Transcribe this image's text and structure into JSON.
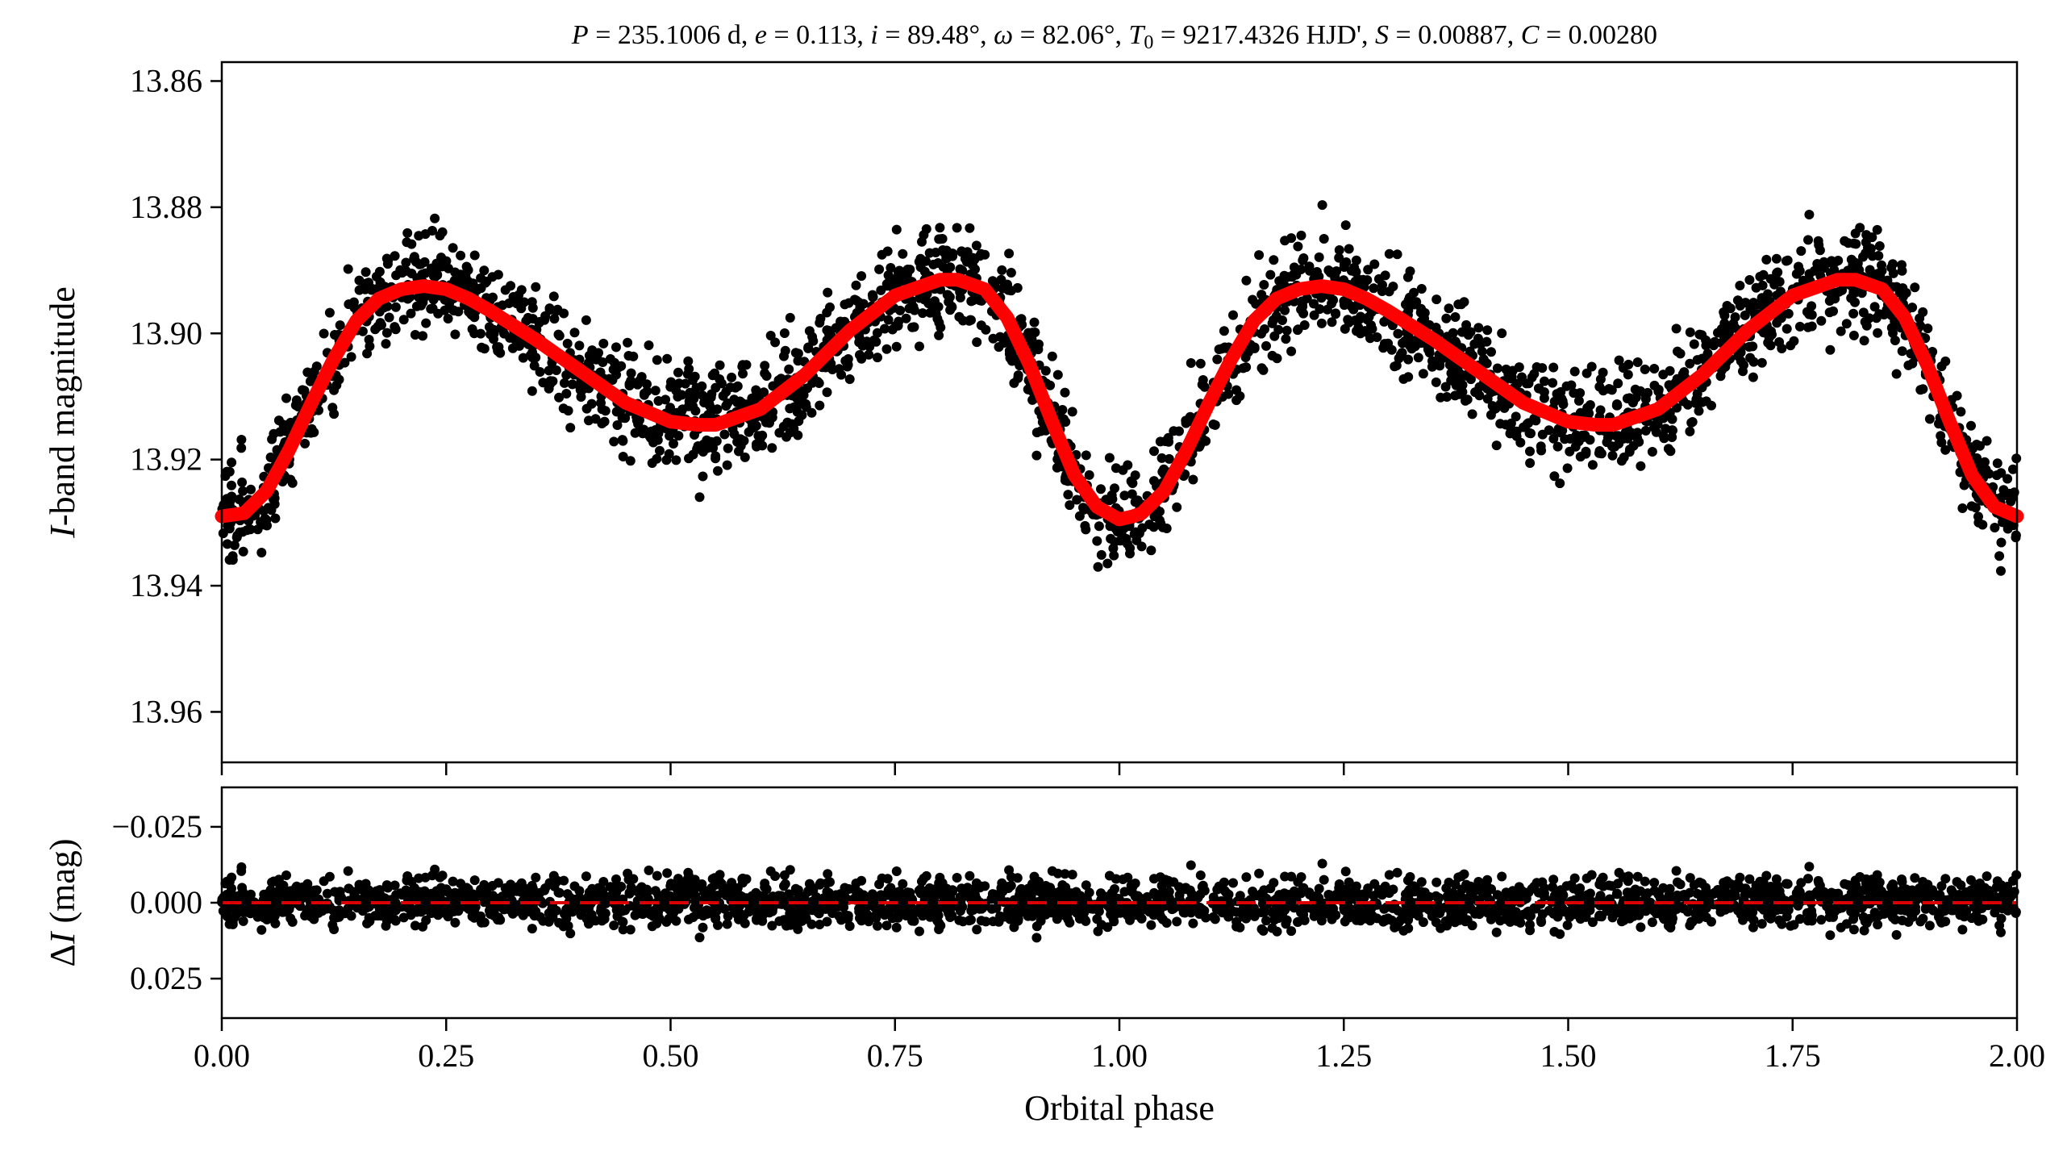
{
  "chart_data": [
    {
      "type": "scatter",
      "panel": "top",
      "title": "P = 235.1006 d, e = 0.113, i = 89.48°, ω = 82.06°, T0 = 9217.4326 HJD', S = 0.00887, C = 0.00280",
      "xlabel": "",
      "ylabel": "I-band magnitude",
      "ylabel_italic_part": "I",
      "ylabel_rest": "-band magnitude",
      "xlim": [
        0.0,
        2.0
      ],
      "ylim": [
        13.968,
        13.857
      ],
      "y_inverted": true,
      "yticks": [
        13.86,
        13.88,
        13.9,
        13.92,
        13.94,
        13.96
      ],
      "ytick_labels": [
        "13.86",
        "13.88",
        "13.90",
        "13.92",
        "13.94",
        "13.96"
      ],
      "xticks": [
        0.0,
        0.25,
        0.5,
        0.75,
        1.0,
        1.25,
        1.5,
        1.75,
        2.0
      ],
      "grid": false,
      "series": [
        {
          "kind": "points",
          "color": "#000000",
          "marker": "filled-circle",
          "note_scatter_rms": 0.0065,
          "x_range": [
            0.0,
            2.0
          ]
        },
        {
          "kind": "model-line",
          "color": "#ff0000",
          "x": [
            0.0,
            0.025,
            0.05,
            0.075,
            0.1,
            0.125,
            0.15,
            0.175,
            0.2,
            0.225,
            0.25,
            0.275,
            0.3,
            0.35,
            0.4,
            0.45,
            0.5,
            0.53,
            0.55,
            0.6,
            0.65,
            0.7,
            0.75,
            0.8,
            0.82,
            0.85,
            0.875,
            0.9,
            0.925,
            0.95,
            0.975,
            1.0,
            1.015,
            1.025,
            1.05,
            1.075,
            1.1,
            1.125,
            1.15,
            1.175,
            1.2,
            1.225,
            1.25,
            1.275,
            1.3,
            1.35,
            1.4,
            1.45,
            1.5,
            1.53,
            1.55,
            1.6,
            1.65,
            1.7,
            1.75,
            1.8,
            1.82,
            1.85,
            1.875,
            1.9,
            1.925,
            1.95,
            1.975,
            2.0
          ],
          "y": [
            13.929,
            13.9285,
            13.925,
            13.9185,
            13.911,
            13.904,
            13.898,
            13.8945,
            13.893,
            13.8925,
            13.893,
            13.8945,
            13.8965,
            13.901,
            13.906,
            13.911,
            13.914,
            13.9145,
            13.9145,
            13.912,
            13.9065,
            13.8995,
            13.894,
            13.8915,
            13.8915,
            13.893,
            13.8975,
            13.905,
            13.914,
            13.9225,
            13.9275,
            13.9295,
            13.929,
            13.9285,
            13.925,
            13.9185,
            13.911,
            13.904,
            13.898,
            13.8945,
            13.893,
            13.8925,
            13.893,
            13.8945,
            13.8965,
            13.901,
            13.906,
            13.911,
            13.914,
            13.9145,
            13.9145,
            13.912,
            13.9065,
            13.8995,
            13.894,
            13.8915,
            13.8915,
            13.893,
            13.8975,
            13.905,
            13.914,
            13.9225,
            13.9275,
            13.929
          ]
        }
      ]
    },
    {
      "type": "scatter",
      "panel": "bottom",
      "xlabel": "Orbital phase",
      "ylabel": "ΔI (mag)",
      "ylabel_delta": "Δ",
      "ylabel_italic_part": "I",
      "ylabel_rest": " (mag)",
      "xlim": [
        0.0,
        2.0
      ],
      "ylim": [
        0.038,
        -0.038
      ],
      "y_inverted": true,
      "yticks": [
        -0.025,
        0.0,
        0.025
      ],
      "ytick_labels": [
        "−0.025",
        "0.000",
        "0.025"
      ],
      "xticks": [
        0.0,
        0.25,
        0.5,
        0.75,
        1.0,
        1.25,
        1.5,
        1.75,
        2.0
      ],
      "xtick_labels": [
        "0.00",
        "0.25",
        "0.50",
        "0.75",
        "1.00",
        "1.25",
        "1.50",
        "1.75",
        "2.00"
      ],
      "grid": false,
      "series": [
        {
          "kind": "points",
          "color": "#000000",
          "marker": "filled-circle",
          "note_scatter_rms": 0.0065
        },
        {
          "kind": "reference-line",
          "style": "dashed",
          "color": "#dd0000",
          "y": 0.0
        }
      ]
    }
  ]
}
